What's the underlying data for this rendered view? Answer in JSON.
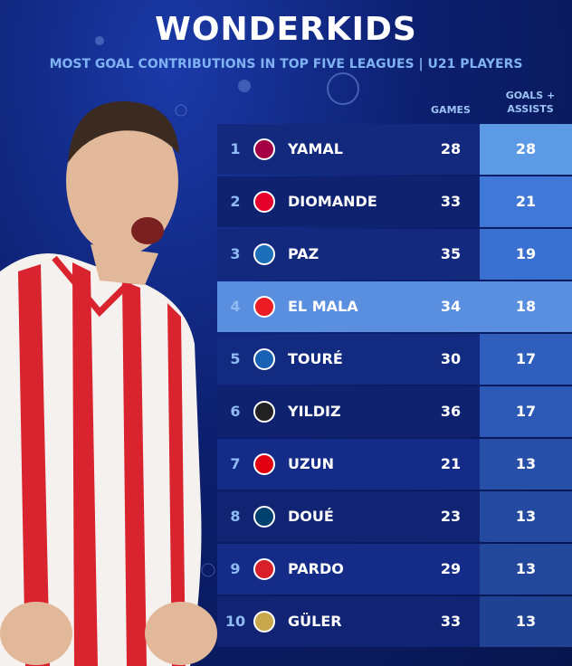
{
  "header": {
    "title": "WONDERKIDS",
    "subtitle": "MOST GOAL CONTRIBUTIONS IN TOP FIVE LEAGUES | U21 PLAYERS"
  },
  "table": {
    "columns": [
      "GAMES",
      "GOALS + ASSISTS"
    ],
    "rows": [
      [
        "1",
        "YAMAL",
        "28",
        "28"
      ],
      [
        "2",
        "DIOMANDE",
        "33",
        "21"
      ],
      [
        "3",
        "PAZ",
        "35",
        "19"
      ],
      [
        "4",
        "EL MALA",
        "34",
        "18"
      ],
      [
        "5",
        "TOURÉ",
        "30",
        "17"
      ],
      [
        "6",
        "YILDIZ",
        "36",
        "17"
      ],
      [
        "7",
        "UZUN",
        "21",
        "13"
      ],
      [
        "8",
        "DOUÉ",
        "23",
        "13"
      ],
      [
        "9",
        "PARDO",
        "29",
        "13"
      ],
      [
        "10",
        "GÜLER",
        "33",
        "13"
      ]
    ]
  }
}
